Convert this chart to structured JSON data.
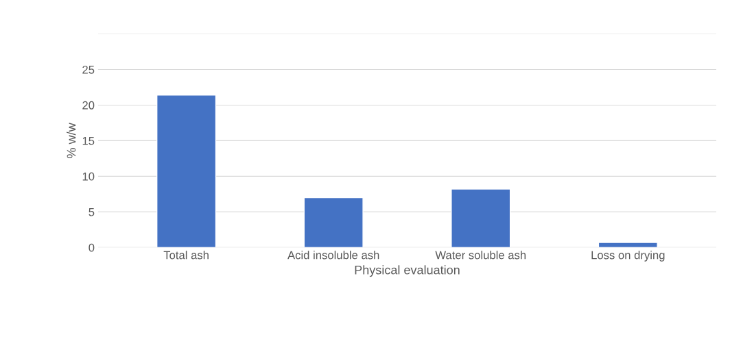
{
  "chart_data": {
    "type": "bar",
    "xlabel": "Physical evaluation",
    "ylabel": "% w/w",
    "categories": [
      "Total ash",
      "Acid insoluble ash",
      "Water soluble ash",
      "Loss on drying"
    ],
    "values": [
      21.4,
      7.0,
      8.2,
      0.7
    ],
    "color": "#4472c4",
    "ylim": [
      0,
      30
    ],
    "yticks": [
      0,
      5,
      10,
      15,
      20,
      25,
      {
        "value": 30,
        "label": null
      }
    ],
    "grid": "y"
  }
}
